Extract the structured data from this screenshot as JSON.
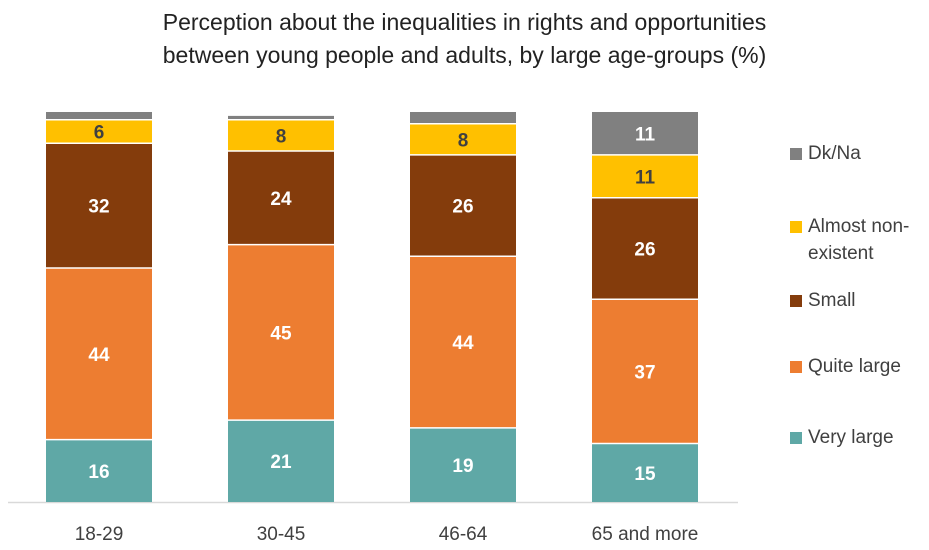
{
  "chart_data": {
    "type": "stacked-bar",
    "title_lines": [
      "Perception about the inequalities in rights and opportunities",
      "between young people and adults, by large age-groups (%)"
    ],
    "categories": [
      "18-29",
      "30-45",
      "46-64",
      "65 and more"
    ],
    "ylim": [
      0,
      100
    ],
    "grid": false,
    "legend_position": "right",
    "series": [
      {
        "name": "Very large",
        "color": "#5fa8a6",
        "values": [
          16,
          21,
          19,
          15
        ]
      },
      {
        "name": "Quite large",
        "color": "#ed7d31",
        "values": [
          44,
          45,
          44,
          37
        ]
      },
      {
        "name": "Small",
        "color": "#843c0c",
        "values": [
          32,
          24,
          26,
          26
        ]
      },
      {
        "name": "Almost non-existent",
        "color": "#ffc000",
        "values": [
          6,
          8,
          8,
          11
        ]
      },
      {
        "name": "Dk/Na",
        "color": "#808080",
        "values": [
          2,
          1,
          3,
          11
        ]
      }
    ],
    "data_labels": {
      "Very large": [
        "16",
        "21",
        "19",
        "15"
      ],
      "Quite large": [
        "44",
        "45",
        "44",
        "37"
      ],
      "Small": [
        "32",
        "24",
        "26",
        "26"
      ],
      "Almost non-existent": [
        "6",
        "8",
        "8",
        "11"
      ],
      "Dk/Na": [
        "",
        "",
        "",
        "11"
      ]
    },
    "legend_order": [
      "Dk/Na",
      "Almost non-existent",
      "Small",
      "Quite large",
      "Very large"
    ],
    "legend_lines": {
      "Almost non-existent": [
        "Almost non-",
        "existent"
      ]
    }
  }
}
